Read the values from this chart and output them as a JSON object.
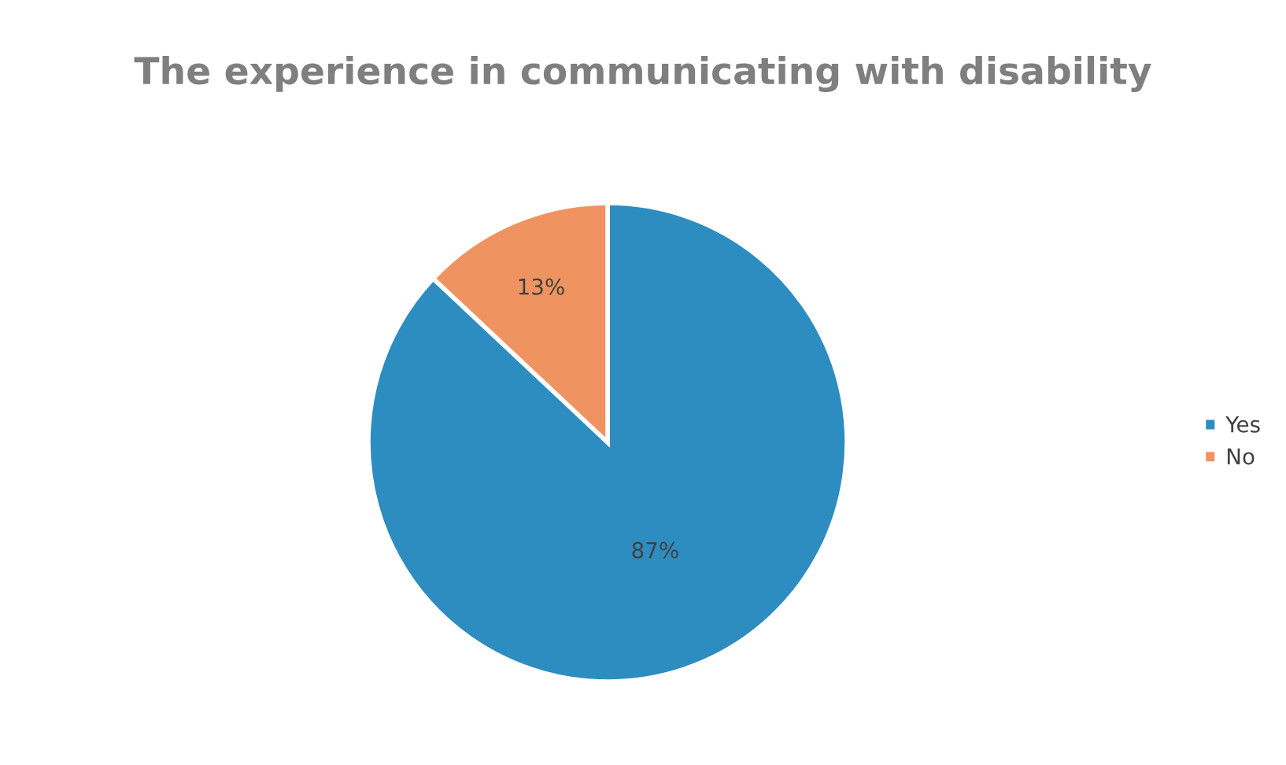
{
  "chart_data": {
    "type": "pie",
    "title": "The experience in communicating with disability",
    "categories": [
      "Yes",
      "No"
    ],
    "values": [
      87,
      13
    ],
    "colors": [
      "#2e8dc0",
      "#ef9461"
    ],
    "value_labels": [
      "87%",
      "13%"
    ],
    "legend": "right"
  }
}
